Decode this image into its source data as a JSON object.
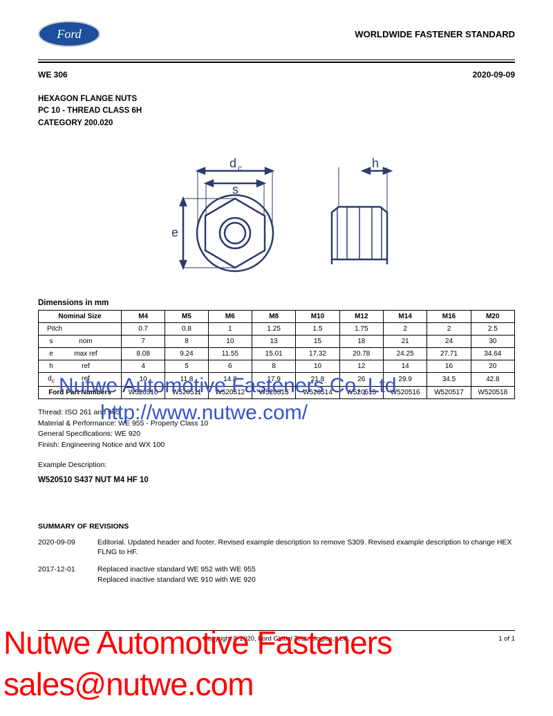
{
  "header": {
    "logo_text": "Ford",
    "standard_title": "WORLDWIDE FASTENER STANDARD",
    "code": "WE 306",
    "date": "2020-09-09"
  },
  "title": {
    "line1": "HEXAGON FLANGE NUTS",
    "line2": "PC 10 - THREAD CLASS 6H",
    "line3": "CATEGORY  200.020"
  },
  "diagram": {
    "labels": {
      "dc": "d",
      "dc_sub": "c",
      "s": "s",
      "e": "e",
      "h": "h"
    },
    "colors": {
      "stroke": "#2c3a6e",
      "text": "#2c3a6e"
    }
  },
  "table": {
    "caption": "Dimensions in mm",
    "header": [
      "Nominal Size",
      "M4",
      "M5",
      "M6",
      "M8",
      "M10",
      "M12",
      "M14",
      "M16",
      "M20"
    ],
    "rows": [
      {
        "label_l": "",
        "label_r": "Pitch",
        "single_label": "Pitch",
        "vals": [
          "0.7",
          "0.8",
          "1",
          "1.25",
          "1.5",
          "1.75",
          "2",
          "2",
          "2.5"
        ]
      },
      {
        "label_l": "s",
        "label_r": "nom",
        "vals": [
          "7",
          "8",
          "10",
          "13",
          "15",
          "18",
          "21",
          "24",
          "30"
        ]
      },
      {
        "label_l": "e",
        "label_r": "max ref",
        "vals": [
          "8.08",
          "9.24",
          "11.55",
          "15.01",
          "17.32",
          "20.78",
          "24.25",
          "27.71",
          "34.64"
        ]
      },
      {
        "label_l": "h",
        "label_r": "ref",
        "vals": [
          "4",
          "5",
          "6",
          "8",
          "10",
          "12",
          "14",
          "16",
          "20"
        ]
      },
      {
        "label_l": "d_c",
        "label_r": "ref",
        "dc": true,
        "vals": [
          "10",
          "11.8",
          "14.2",
          "17.9",
          "21.8",
          "26",
          "29.9",
          "34.5",
          "42.8"
        ]
      }
    ],
    "footer": {
      "label": "Ford Part Numbers",
      "vals": [
        "W520510",
        "W520511",
        "W520512",
        "W520513",
        "W520514",
        "W520515",
        "W520516",
        "W520517",
        "W520518"
      ]
    }
  },
  "notes": {
    "line1": "Thread:  ISO 261 and 965",
    "line2": "Material & Performance:  WE 955 - Property Class 10",
    "line3": "General Specifications:  WE 920",
    "line4": "Finish: Engineering Notice and WX 100",
    "example_label": "Example Description:",
    "example_value": "W520510 S437 NUT M4 HF 10"
  },
  "revisions": {
    "header": "SUMMARY OF REVISIONS",
    "items": [
      {
        "date": "2020-09-09",
        "text": "Editorial. Updated header and footer. Revised example description to remove S309. Revised example description to change HEX FLNG to HF."
      },
      {
        "date": "2017-12-01",
        "text": "Replaced inactive standard WE 952 with WE 955\nReplaced inactive standard WE 910 with WE 920"
      }
    ]
  },
  "footer": {
    "copyright": "Copyright © 2020, Ford Global Technologies, LLC.",
    "page": "1 of 1"
  },
  "watermark1": {
    "line1": "Nutwe Automotive Fasteners Co.,Ltd",
    "line2": "http://www.nutwe.com/"
  },
  "watermark2": {
    "line1": "Nutwe Automotive Fasteners",
    "line2": "sales@nutwe.com"
  }
}
